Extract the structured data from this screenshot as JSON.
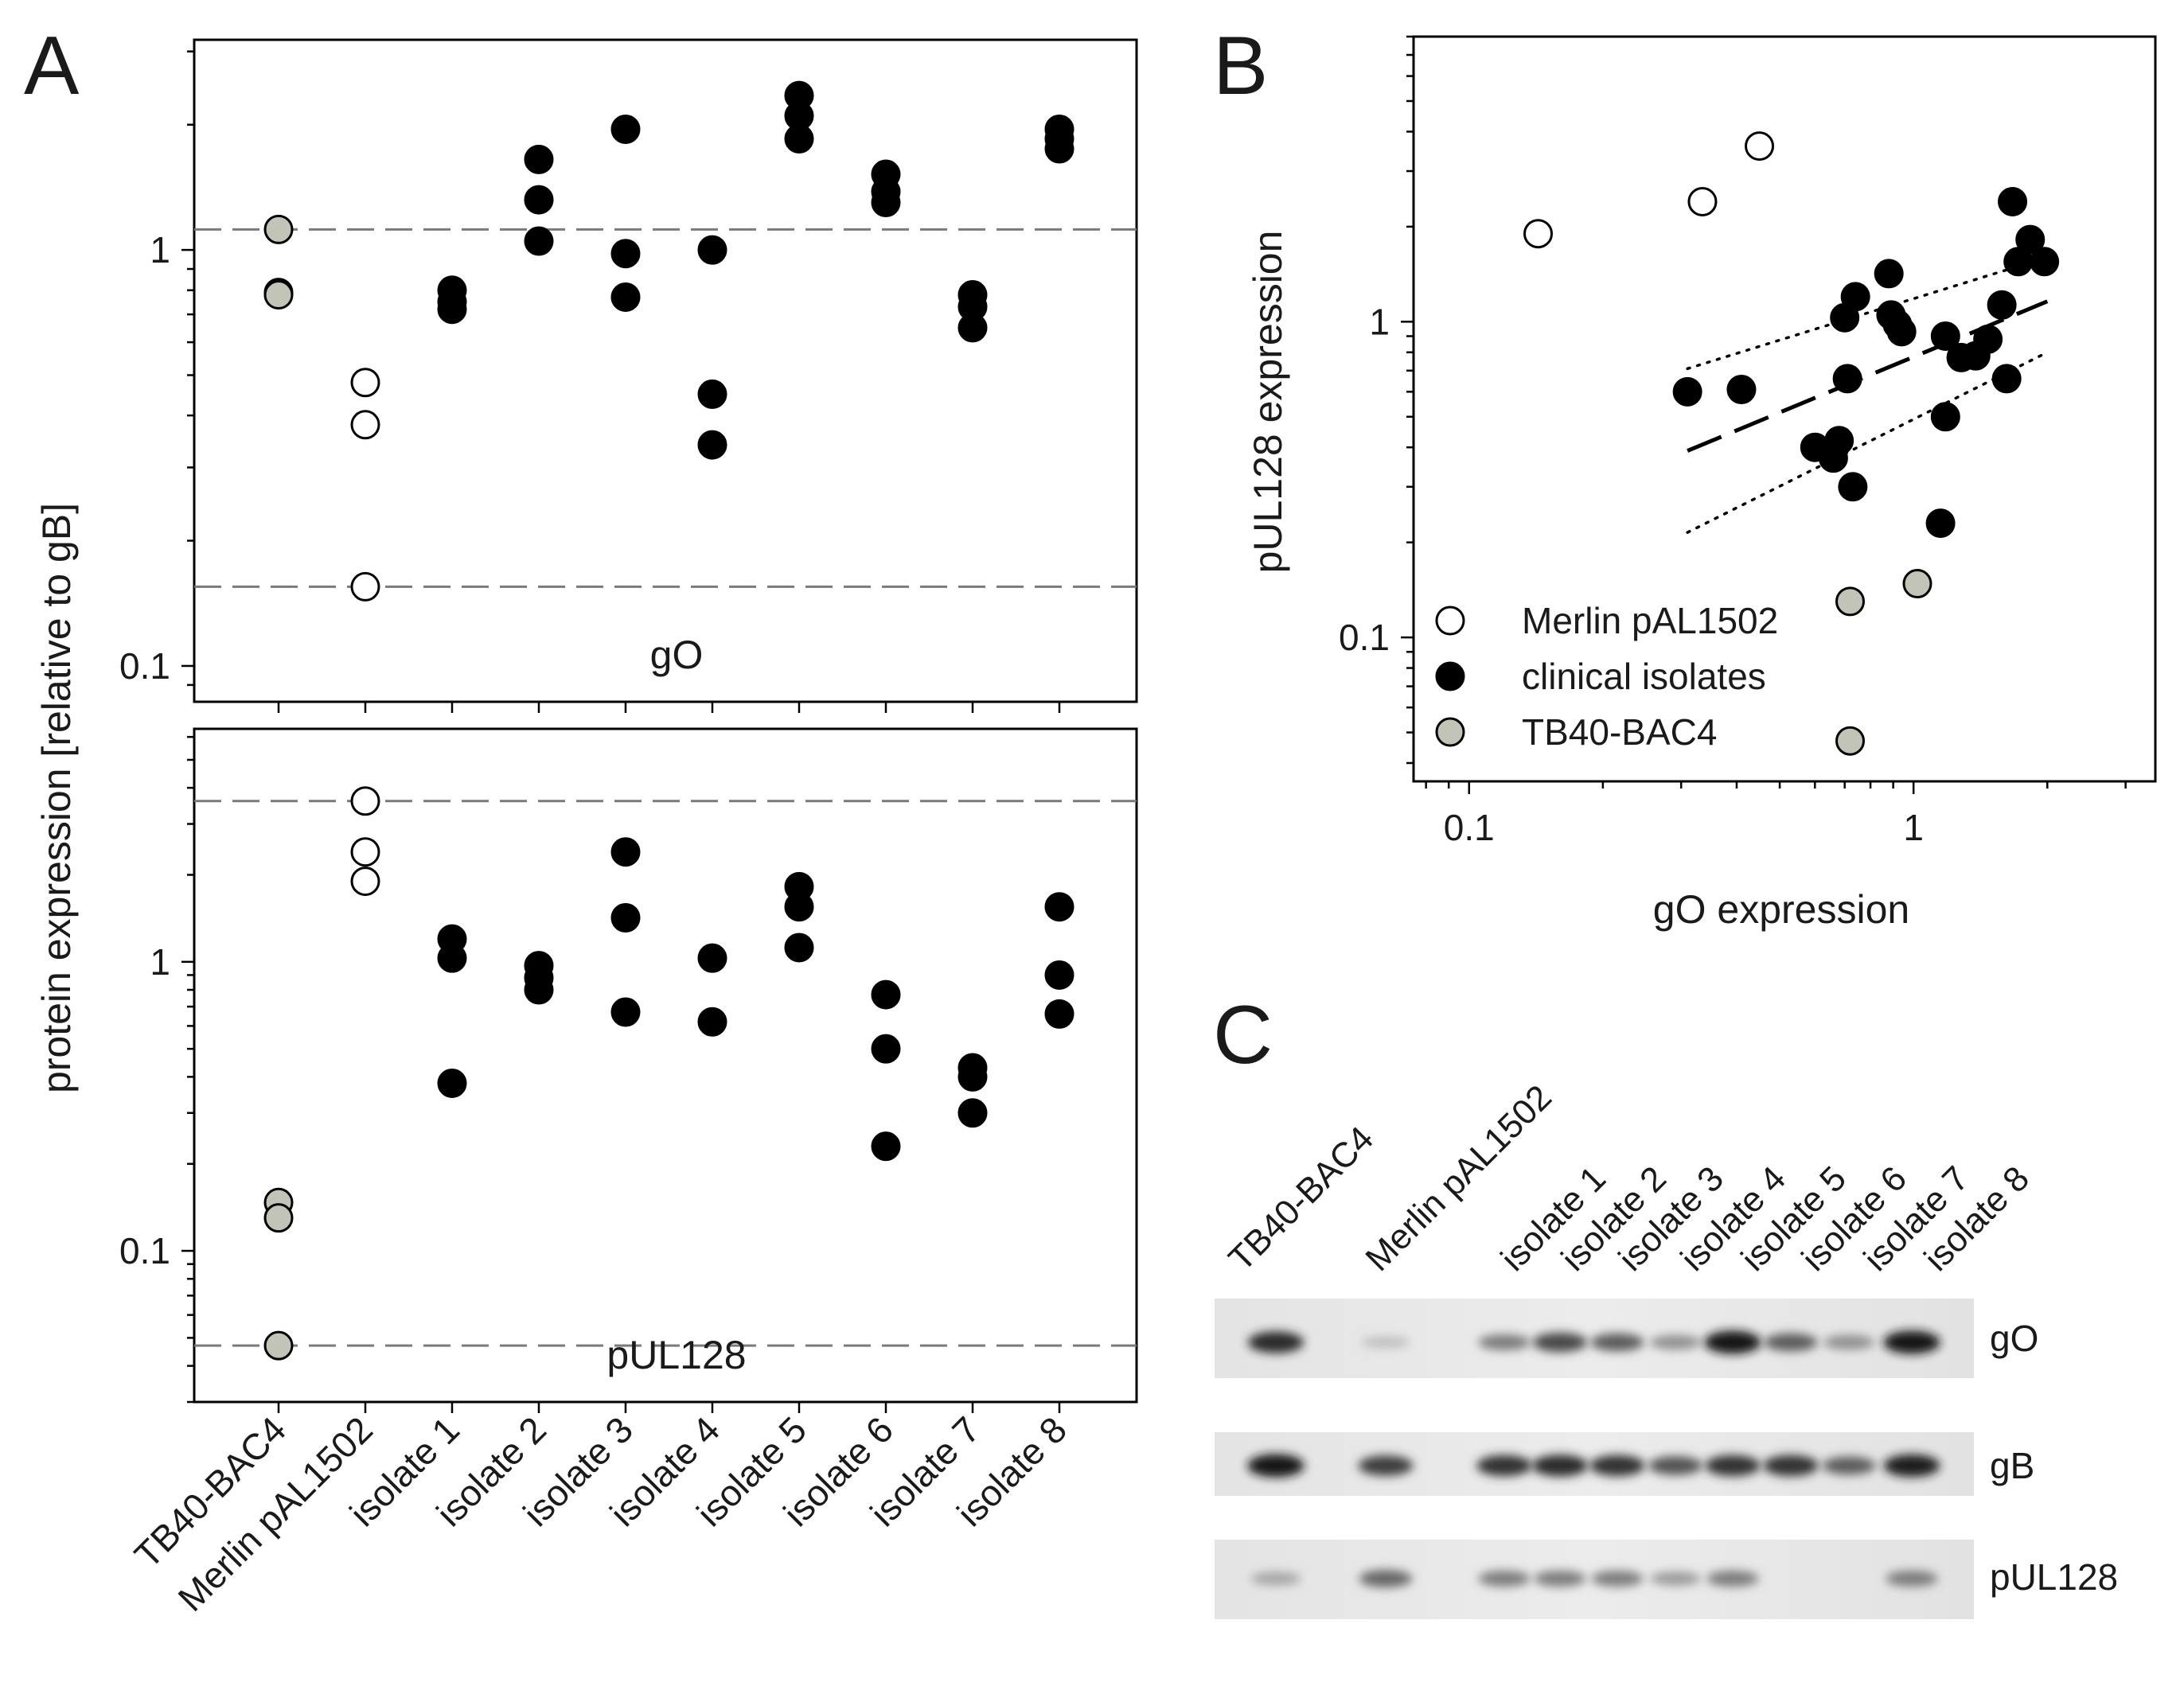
{
  "panels": {
    "a": "A",
    "b": "B",
    "c": "C"
  },
  "colors": {
    "merlin": "#ffffff",
    "clinical": "#000000",
    "tb40": "#c2c4b8",
    "refline": "#7a7a7a"
  },
  "chart_data": [
    {
      "id": "A_top",
      "type": "scatter",
      "panel": "A",
      "title": "gO",
      "ylabel": "protein expression [relative to gB]",
      "yscale": "log",
      "ylim": [
        0.082,
        3.2
      ],
      "yticks": [
        {
          "v": 0.1,
          "label": "0.1"
        },
        {
          "v": 1,
          "label": "1"
        }
      ],
      "categories": [
        "TB40-BAC4",
        "Merlin pAL1502",
        "isolate 1",
        "isolate 2",
        "isolate 3",
        "isolate 4",
        "isolate 5",
        "isolate 6",
        "isolate 7",
        "isolate 8"
      ],
      "reference_lines": [
        1.12,
        0.155
      ],
      "series": [
        {
          "name": "TB40-BAC4",
          "color": "#c2c4b8",
          "points": [
            [
              0,
              1.12
            ],
            [
              0,
              0.79
            ],
            [
              0,
              0.78
            ]
          ]
        },
        {
          "name": "Merlin pAL1502",
          "color": "#ffffff",
          "points": [
            [
              1,
              0.48
            ],
            [
              1,
              0.38
            ],
            [
              1,
              0.155
            ]
          ]
        },
        {
          "name": "clinical isolates",
          "color": "#000000",
          "points": [
            [
              2,
              0.8
            ],
            [
              2,
              0.75
            ],
            [
              2,
              0.72
            ],
            [
              3,
              1.65
            ],
            [
              3,
              1.32
            ],
            [
              3,
              1.05
            ],
            [
              4,
              1.95
            ],
            [
              4,
              0.98
            ],
            [
              4,
              0.77
            ],
            [
              5,
              1.0
            ],
            [
              5,
              0.45
            ],
            [
              5,
              0.34
            ],
            [
              6,
              2.35
            ],
            [
              6,
              2.1
            ],
            [
              6,
              1.85
            ],
            [
              7,
              1.52
            ],
            [
              7,
              1.38
            ],
            [
              7,
              1.3
            ],
            [
              8,
              0.78
            ],
            [
              8,
              0.73
            ],
            [
              8,
              0.65
            ],
            [
              9,
              1.95
            ],
            [
              9,
              1.85
            ],
            [
              9,
              1.75
            ]
          ]
        }
      ]
    },
    {
      "id": "A_bottom",
      "type": "scatter",
      "panel": "A",
      "title": "pUL128",
      "yscale": "log",
      "yticks": [
        {
          "v": 0.1,
          "label": "0.1"
        },
        {
          "v": 1,
          "label": "1"
        }
      ],
      "ylim": [
        0.03,
        6.4
      ],
      "categories": [
        "TB40-BAC4",
        "Merlin pAL1502",
        "isolate 1",
        "isolate 2",
        "isolate 3",
        "isolate 4",
        "isolate 5",
        "isolate 6",
        "isolate 7",
        "isolate 8"
      ],
      "reference_lines": [
        3.6,
        0.047
      ],
      "series": [
        {
          "name": "TB40-BAC4",
          "color": "#c2c4b8",
          "points": [
            [
              0,
              0.147
            ],
            [
              0,
              0.13
            ],
            [
              0,
              0.047
            ]
          ]
        },
        {
          "name": "Merlin pAL1502",
          "color": "#ffffff",
          "points": [
            [
              1,
              3.6
            ],
            [
              1,
              2.4
            ],
            [
              1,
              1.9
            ]
          ]
        },
        {
          "name": "clinical isolates",
          "color": "#000000",
          "points": [
            [
              2,
              1.2
            ],
            [
              2,
              1.03
            ],
            [
              2,
              0.38
            ],
            [
              3,
              0.97
            ],
            [
              3,
              0.88
            ],
            [
              3,
              0.8
            ],
            [
              4,
              2.4
            ],
            [
              4,
              1.42
            ],
            [
              4,
              0.67
            ],
            [
              5,
              1.03
            ],
            [
              5,
              0.62
            ],
            [
              6,
              1.82
            ],
            [
              6,
              1.55
            ],
            [
              6,
              1.12
            ],
            [
              7,
              0.77
            ],
            [
              7,
              0.5
            ],
            [
              7,
              0.23
            ],
            [
              8,
              0.43
            ],
            [
              8,
              0.4
            ],
            [
              8,
              0.3
            ],
            [
              9,
              1.55
            ],
            [
              9,
              0.9
            ],
            [
              9,
              0.66
            ]
          ]
        }
      ]
    },
    {
      "id": "B",
      "type": "scatter",
      "panel": "B",
      "xlabel": "gO expression",
      "ylabel": "pUL128 expression",
      "xscale": "log",
      "yscale": "log",
      "xlim": [
        0.075,
        3.5
      ],
      "ylim": [
        0.035,
        8.0
      ],
      "xticks": [
        {
          "v": 0.1,
          "label": "0.1"
        },
        {
          "v": 1,
          "label": "1"
        }
      ],
      "yticks": [
        {
          "v": 0.1,
          "label": "0.1"
        },
        {
          "v": 1,
          "label": "1"
        }
      ],
      "series": [
        {
          "name": "Merlin pAL1502",
          "color": "#ffffff",
          "points": [
            [
              0.143,
              1.9
            ],
            [
              0.335,
              2.4
            ],
            [
              0.45,
              3.6
            ]
          ]
        },
        {
          "name": "clinical isolates",
          "color": "#000000",
          "points": [
            [
              0.31,
              0.6
            ],
            [
              0.41,
              0.61
            ],
            [
              0.6,
              0.4
            ],
            [
              0.66,
              0.37
            ],
            [
              0.68,
              0.42
            ],
            [
              0.7,
              1.03
            ],
            [
              0.71,
              0.66
            ],
            [
              0.73,
              0.3
            ],
            [
              0.74,
              1.2
            ],
            [
              0.88,
              1.42
            ],
            [
              0.89,
              1.05
            ],
            [
              0.92,
              0.98
            ],
            [
              0.94,
              0.93
            ],
            [
              1.15,
              0.23
            ],
            [
              1.18,
              0.5
            ],
            [
              1.18,
              0.9
            ],
            [
              1.28,
              0.77
            ],
            [
              1.38,
              0.78
            ],
            [
              1.47,
              0.88
            ],
            [
              1.58,
              1.13
            ],
            [
              1.62,
              0.66
            ],
            [
              1.67,
              2.4
            ],
            [
              1.72,
              1.55
            ],
            [
              1.83,
              1.82
            ],
            [
              1.97,
              1.55
            ]
          ]
        },
        {
          "name": "TB40-BAC4",
          "color": "#c2c4b8",
          "points": [
            [
              0.72,
              0.13
            ],
            [
              1.02,
              0.148
            ],
            [
              0.72,
              0.047
            ]
          ]
        }
      ],
      "legend": [
        "Merlin pAL1502",
        "clinical isolates",
        "TB40-BAC4"
      ],
      "legend_position": "bottom-left",
      "regression": {
        "line": [
          [
            0.31,
            0.39
          ],
          [
            2.0,
            1.16
          ]
        ],
        "ci_upper": [
          [
            0.31,
            0.71
          ],
          [
            2.0,
            1.6
          ]
        ],
        "ci_lower": [
          [
            0.31,
            0.215
          ],
          [
            2.0,
            0.8
          ]
        ]
      }
    }
  ],
  "blot": {
    "lanes": [
      "TB40-BAC4",
      "Merlin pAL1502",
      "isolate 1",
      "isolate 2",
      "isolate 3",
      "isolate 4",
      "isolate 5",
      "isolate 6",
      "isolate 7",
      "isolate 8"
    ],
    "rows": [
      "gO",
      "gB",
      "pUL128"
    ],
    "intensity": {
      "gO": [
        0.85,
        0.12,
        0.45,
        0.7,
        0.6,
        0.35,
        0.95,
        0.6,
        0.35,
        0.95
      ],
      "gB": [
        0.95,
        0.75,
        0.8,
        0.85,
        0.8,
        0.65,
        0.8,
        0.8,
        0.6,
        0.9
      ],
      "pUL128": [
        0.25,
        0.55,
        0.45,
        0.45,
        0.45,
        0.3,
        0.45,
        0.0,
        0.0,
        0.45
      ]
    }
  }
}
